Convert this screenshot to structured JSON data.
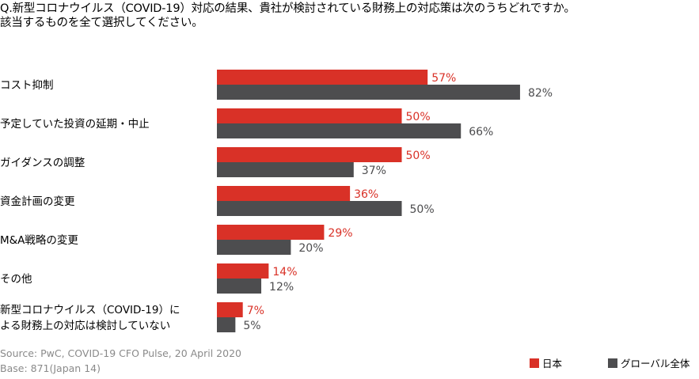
{
  "title": {
    "line1": "Q.新型コロナウイルス（COVID-19）対応の結果、貴社が検討されている財務上の対応策は次のうちどれですか。",
    "line2": "該当するものを全て選択してください。"
  },
  "chart_data": {
    "type": "bar",
    "orientation": "horizontal",
    "categories": [
      [
        "コスト抑制"
      ],
      [
        "予定していた投資の延期・中止"
      ],
      [
        "ガイダンスの調整"
      ],
      [
        "資金計画の変更"
      ],
      [
        "M&A戦略の変更"
      ],
      [
        "その他"
      ],
      [
        "新型コロナウイルス（COVID-19）に",
        "よる財務上の対応は検討していない"
      ]
    ],
    "series": [
      {
        "name": "日本",
        "color": "#d93127",
        "values": [
          57,
          50,
          50,
          36,
          29,
          14,
          7
        ]
      },
      {
        "name": "グローバル全体",
        "color": "#4d4d4f",
        "values": [
          82,
          66,
          37,
          50,
          20,
          12,
          5
        ]
      }
    ],
    "value_suffix": "%",
    "xlim": [
      0,
      100
    ],
    "grid": false,
    "legend_position": "bottom-right"
  },
  "source": "Source: PwC, COVID-19 CFO Pulse, 20 April 2020",
  "base": "Base: 871(Japan 14)",
  "label_color_japan": "#d93127",
  "label_color_global": "#4d4d4f"
}
